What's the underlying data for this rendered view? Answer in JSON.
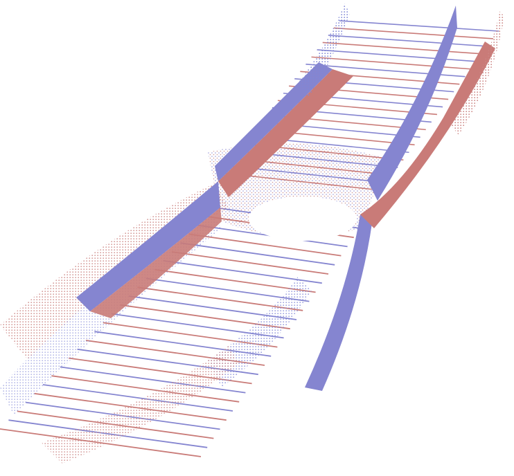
{
  "scene": {
    "description_free": true,
    "background": "#ffffff",
    "colors": {
      "blue": "#8585d0",
      "red": "#c97b78",
      "blue_dots": "#7f86d6",
      "red_dots": "#cc8583"
    }
  }
}
